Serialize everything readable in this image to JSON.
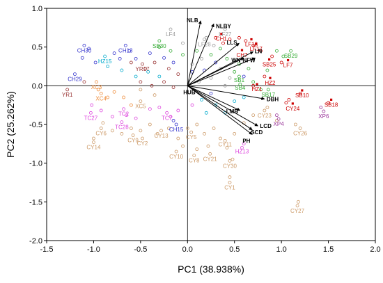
{
  "chart_data": {
    "type": "scatter",
    "xlabel": "PC1 (38.938%)",
    "ylabel": "PC2 (25.262%)",
    "xlim": [
      -1.5,
      2.0
    ],
    "ylim": [
      -2.0,
      1.0
    ],
    "xticks": [
      "-1.5",
      "-1.0",
      "-0.5",
      "0.0",
      "0.5",
      "1.0",
      "1.5",
      "2.0"
    ],
    "yticks": [
      "1.0",
      "0.5",
      "0.0",
      "-0.5",
      "-1.0",
      "-1.5",
      "-2.0"
    ],
    "reference_lines": {
      "x": 0,
      "y": 0
    },
    "vectors": [
      {
        "label": "NLB",
        "x": 0.14,
        "y": 0.84
      },
      {
        "label": "NLBY",
        "x": 0.28,
        "y": 0.8
      },
      {
        "label": "LLS",
        "x": 0.55,
        "y": 0.55
      },
      {
        "label": "LN",
        "x": 0.7,
        "y": 0.44
      },
      {
        "label": "WN",
        "x": 0.6,
        "y": 0.36
      },
      {
        "label": "NFW",
        "x": 0.72,
        "y": 0.36
      },
      {
        "label": "HUB",
        "x": 0.0,
        "y": 0.0
      },
      {
        "label": "DBH",
        "x": 0.82,
        "y": -0.17
      },
      {
        "label": "LMB",
        "x": 0.56,
        "y": -0.32
      },
      {
        "label": "LCD",
        "x": 0.75,
        "y": -0.52
      },
      {
        "label": "SCD",
        "x": 0.69,
        "y": -0.57
      },
      {
        "label": "PH",
        "x": 0.69,
        "y": -0.63
      }
    ],
    "labeled_points": [
      {
        "label": "CH30",
        "x": -1.1,
        "y": 0.52,
        "group": "CH"
      },
      {
        "label": "CH13",
        "x": -0.66,
        "y": 0.52,
        "group": "CH"
      },
      {
        "label": "CH29",
        "x": -1.2,
        "y": 0.15,
        "group": "CH"
      },
      {
        "label": "CH15",
        "x": -0.12,
        "y": -0.5,
        "group": "CH"
      },
      {
        "label": "HZ15",
        "x": -0.88,
        "y": 0.38,
        "group": "HZ"
      },
      {
        "label": "HZ2",
        "x": 0.88,
        "y": 0.1,
        "group": "HZ"
      },
      {
        "label": "HZ1",
        "x": 0.74,
        "y": 0.02,
        "group": "HZ"
      },
      {
        "label": "HZ13",
        "x": 0.58,
        "y": -0.8,
        "group": "HZ"
      },
      {
        "label": "SB30",
        "x": -0.3,
        "y": 0.58,
        "group": "SB"
      },
      {
        "label": "SB29",
        "x": 1.1,
        "y": 0.45,
        "group": "SB"
      },
      {
        "label": "SB17",
        "x": 0.86,
        "y": -0.05,
        "group": "SB"
      },
      {
        "label": "SB25",
        "x": 0.87,
        "y": 0.34,
        "group": "SB"
      },
      {
        "label": "SB10",
        "x": 1.22,
        "y": -0.06,
        "group": "SB"
      },
      {
        "label": "SB18",
        "x": 1.53,
        "y": -0.18,
        "group": "SB"
      },
      {
        "label": "LF4",
        "x": -0.18,
        "y": 0.73,
        "group": "LF"
      },
      {
        "label": "LF27",
        "x": 0.4,
        "y": 0.73,
        "group": "LF"
      },
      {
        "label": "LF28",
        "x": 0.18,
        "y": 0.6,
        "group": "LF"
      },
      {
        "label": "LF17",
        "x": 0.73,
        "y": 0.54,
        "group": "LF"
      },
      {
        "label": "LF7",
        "x": 1.07,
        "y": 0.33,
        "group": "LF"
      },
      {
        "label": "CH1",
        "x": 0.36,
        "y": 0.67,
        "group": "CH2"
      },
      {
        "label": "CH7",
        "x": 0.58,
        "y": 0.46,
        "group": "CH2"
      },
      {
        "label": "LF18",
        "x": 0.68,
        "y": 0.6,
        "group": "CH2"
      },
      {
        "label": "YR17",
        "x": -0.48,
        "y": 0.28,
        "group": "YR"
      },
      {
        "label": "YR1",
        "x": -1.28,
        "y": -0.05,
        "group": "YR"
      },
      {
        "label": "XC3",
        "x": -0.97,
        "y": 0.05,
        "group": "XC"
      },
      {
        "label": "XC4",
        "x": -0.92,
        "y": -0.1,
        "group": "XC"
      },
      {
        "label": "XC5",
        "x": -0.5,
        "y": -0.2,
        "group": "XC"
      },
      {
        "label": "XP4",
        "x": 0.97,
        "y": -0.43,
        "group": "XP"
      },
      {
        "label": "XP6",
        "x": 1.45,
        "y": -0.33,
        "group": "XP"
      },
      {
        "label": "TC27",
        "x": -1.03,
        "y": -0.35,
        "group": "TC"
      },
      {
        "label": "TC2",
        "x": -0.68,
        "y": -0.3,
        "group": "TC"
      },
      {
        "label": "TC28",
        "x": -0.7,
        "y": -0.47,
        "group": "TC"
      },
      {
        "label": "TC7",
        "x": -0.22,
        "y": -0.35,
        "group": "TC"
      },
      {
        "label": "CY24",
        "x": 1.12,
        "y": -0.23,
        "group": "CY"
      },
      {
        "label": "CY23",
        "x": 0.82,
        "y": -0.32,
        "group": "CY"
      },
      {
        "label": "CY26",
        "x": 1.2,
        "y": -0.55,
        "group": "CY"
      },
      {
        "label": "CY6",
        "x": -0.92,
        "y": -0.55,
        "group": "CY"
      },
      {
        "label": "CY14",
        "x": -1.0,
        "y": -0.73,
        "group": "CY"
      },
      {
        "label": "CY9",
        "x": -0.58,
        "y": -0.64,
        "group": "CY"
      },
      {
        "label": "CY2",
        "x": -0.48,
        "y": -0.68,
        "group": "CY"
      },
      {
        "label": "CY13",
        "x": -0.28,
        "y": -0.58,
        "group": "CY"
      },
      {
        "label": "CY5",
        "x": 0.04,
        "y": -0.6,
        "group": "CY"
      },
      {
        "label": "CY10",
        "x": -0.12,
        "y": -0.85,
        "group": "CY"
      },
      {
        "label": "CY8",
        "x": 0.07,
        "y": -0.9,
        "group": "CY"
      },
      {
        "label": "CY21",
        "x": 0.24,
        "y": -0.88,
        "group": "CY"
      },
      {
        "label": "CY11",
        "x": 0.4,
        "y": -0.71,
        "group": "CY"
      },
      {
        "label": "CY30",
        "x": 0.45,
        "y": -0.97,
        "group": "CY"
      },
      {
        "label": "CY1",
        "x": 0.45,
        "y": -1.25,
        "group": "CY"
      },
      {
        "label": "CY27",
        "x": 1.17,
        "y": -1.55,
        "group": "CY"
      },
      {
        "label": "SB4",
        "x": 0.56,
        "y": 0.02,
        "group": "SB"
      },
      {
        "label": "SB1",
        "x": 0.55,
        "y": 0.12,
        "group": "SB"
      }
    ],
    "colors": {
      "CH": "#3333cc",
      "HZ": "#cc0000",
      "HZ_cyan": "#00aacc",
      "SB": "#33aa33",
      "SB_red": "#cc0000",
      "LF": "#999999",
      "CH2": "#cc0000",
      "YR": "#993333",
      "XC": "#ee8833",
      "XP": "#993399",
      "TC": "#dd44dd",
      "CY": "#cc9966"
    },
    "label_colors": {
      "CH30": "#3333cc",
      "CH13": "#3333cc",
      "CH29": "#3333cc",
      "CH15": "#3333cc",
      "HZ15": "#00aacc",
      "HZ2": "#cc0000",
      "HZ1": "#cc0000",
      "HZ13": "#dd44dd",
      "SB30": "#33aa33",
      "SB29": "#33aa33",
      "SB17": "#33aa33",
      "SB25": "#cc0000",
      "SB10": "#cc0000",
      "SB18": "#cc0000",
      "SB4": "#33aa33",
      "SB1": "#33aa33",
      "LF4": "#999999",
      "LF27": "#999999",
      "LF28": "#999999",
      "LF17": "#cc0000",
      "LF7": "#cc0000",
      "CH1": "#cc0000",
      "CH7": "#cc0000",
      "LF18": "#cc0000",
      "YR17": "#993333",
      "YR1": "#993333",
      "XC3": "#ee8833",
      "XC4": "#ee8833",
      "XC5": "#cc9966",
      "XP4": "#993399",
      "XP6": "#993399",
      "TC27": "#dd44dd",
      "TC2": "#dd44dd",
      "TC28": "#dd44dd",
      "TC7": "#dd44dd",
      "CY24": "#cc0000"
    },
    "unlabeled_points": [
      [
        -1.12,
        0.36,
        "#3333cc"
      ],
      [
        -1.05,
        0.48,
        "#3333cc"
      ],
      [
        -0.98,
        0.3,
        "#3333cc"
      ],
      [
        -0.78,
        0.42,
        "#3333cc"
      ],
      [
        -0.72,
        0.35,
        "#3333cc"
      ],
      [
        -0.62,
        0.45,
        "#3333cc"
      ],
      [
        -0.55,
        0.35,
        "#3333cc"
      ],
      [
        -0.4,
        0.42,
        "#3333cc"
      ],
      [
        -0.25,
        0.36,
        "#3333cc"
      ],
      [
        -0.15,
        0.3,
        "#3333cc"
      ],
      [
        -0.85,
        0.25,
        "#00aacc"
      ],
      [
        -0.7,
        0.2,
        "#00aacc"
      ],
      [
        -0.55,
        0.12,
        "#00aacc"
      ],
      [
        -0.42,
        0.18,
        "#00aacc"
      ],
      [
        -0.3,
        0.12,
        "#00aacc"
      ],
      [
        -0.6,
        0.3,
        "#993333"
      ],
      [
        -0.45,
        0.22,
        "#993333"
      ],
      [
        -0.35,
        0.3,
        "#993333"
      ],
      [
        -0.2,
        0.22,
        "#993333"
      ],
      [
        -0.1,
        0.15,
        "#993333"
      ],
      [
        -0.5,
        0.05,
        "#993333"
      ],
      [
        -0.38,
        0.0,
        "#993333"
      ],
      [
        -0.25,
        0.05,
        "#993333"
      ],
      [
        -0.15,
        -0.02,
        "#993333"
      ],
      [
        -1.1,
        0.05,
        "#993333"
      ],
      [
        -0.3,
        0.5,
        "#33aa33"
      ],
      [
        -0.18,
        0.45,
        "#33aa33"
      ],
      [
        -0.05,
        0.4,
        "#33aa33"
      ],
      [
        0.1,
        0.45,
        "#33aa33"
      ],
      [
        0.25,
        0.4,
        "#33aa33"
      ],
      [
        0.35,
        0.48,
        "#33aa33"
      ],
      [
        0.42,
        0.35,
        "#33aa33"
      ],
      [
        0.55,
        0.28,
        "#33aa33"
      ],
      [
        0.65,
        0.22,
        "#33aa33"
      ],
      [
        0.5,
        0.18,
        "#33aa33"
      ],
      [
        0.95,
        0.45,
        "#33aa33"
      ],
      [
        1.02,
        0.38,
        "#33aa33"
      ],
      [
        0.85,
        0.2,
        "#33aa33"
      ],
      [
        0.7,
        0.05,
        "#33aa33"
      ],
      [
        0.78,
        -0.05,
        "#33aa33"
      ],
      [
        0.3,
        0.62,
        "#cc0000"
      ],
      [
        0.38,
        0.55,
        "#cc0000"
      ],
      [
        0.45,
        0.6,
        "#cc0000"
      ],
      [
        0.55,
        0.62,
        "#cc0000"
      ],
      [
        0.62,
        0.58,
        "#cc0000"
      ],
      [
        0.7,
        0.52,
        "#cc0000"
      ],
      [
        0.78,
        0.45,
        "#cc0000"
      ],
      [
        0.9,
        0.38,
        "#cc0000"
      ],
      [
        1.0,
        0.3,
        "#cc0000"
      ],
      [
        0.82,
        0.12,
        "#cc0000"
      ],
      [
        0.7,
        0.0,
        "#cc0000"
      ],
      [
        1.08,
        -0.18,
        "#cc0000"
      ],
      [
        1.2,
        -0.1,
        "#cc0000"
      ],
      [
        1.5,
        -0.22,
        "#cc0000"
      ],
      [
        1.05,
        -0.22,
        "#cc0000"
      ],
      [
        0.2,
        0.62,
        "#999999"
      ],
      [
        0.28,
        0.52,
        "#999999"
      ],
      [
        0.15,
        0.35,
        "#999999"
      ],
      [
        0.05,
        0.28,
        "#999999"
      ],
      [
        0.35,
        0.22,
        "#999999"
      ],
      [
        0.45,
        0.1,
        "#999999"
      ],
      [
        0.25,
        0.1,
        "#999999"
      ],
      [
        0.12,
        0.05,
        "#999999"
      ],
      [
        -0.05,
        0.55,
        "#999999"
      ],
      [
        0.4,
        0.0,
        "#999999"
      ],
      [
        -0.95,
        -0.05,
        "#ee8833"
      ],
      [
        -0.85,
        -0.15,
        "#ee8833"
      ],
      [
        -0.78,
        -0.08,
        "#ee8833"
      ],
      [
        -0.68,
        -0.15,
        "#ee8833"
      ],
      [
        -0.6,
        -0.25,
        "#ee8833"
      ],
      [
        -1.02,
        -0.25,
        "#dd44dd"
      ],
      [
        -0.92,
        -0.32,
        "#dd44dd"
      ],
      [
        -0.8,
        -0.4,
        "#dd44dd"
      ],
      [
        -0.65,
        -0.38,
        "#dd44dd"
      ],
      [
        -0.55,
        -0.42,
        "#dd44dd"
      ],
      [
        -0.4,
        -0.3,
        "#dd44dd"
      ],
      [
        -0.3,
        -0.28,
        "#dd44dd"
      ],
      [
        -0.18,
        -0.4,
        "#dd44dd"
      ],
      [
        -0.1,
        -0.32,
        "#dd44dd"
      ],
      [
        0.05,
        -0.25,
        "#dd44dd"
      ],
      [
        -0.9,
        -0.48,
        "#cc9966"
      ],
      [
        -0.8,
        -0.58,
        "#cc9966"
      ],
      [
        -0.7,
        -0.62,
        "#cc9966"
      ],
      [
        -0.6,
        -0.55,
        "#cc9966"
      ],
      [
        -0.5,
        -0.58,
        "#cc9966"
      ],
      [
        -0.4,
        -0.5,
        "#cc9966"
      ],
      [
        -0.32,
        -0.62,
        "#cc9966"
      ],
      [
        -0.2,
        -0.55,
        "#cc9966"
      ],
      [
        -0.1,
        -0.68,
        "#cc9966"
      ],
      [
        0.0,
        -0.55,
        "#cc9966"
      ],
      [
        0.1,
        -0.5,
        "#cc9966"
      ],
      [
        0.18,
        -0.62,
        "#cc9966"
      ],
      [
        0.28,
        -0.55,
        "#cc9966"
      ],
      [
        0.35,
        -0.68,
        "#cc9966"
      ],
      [
        0.22,
        -0.78,
        "#cc9966"
      ],
      [
        0.1,
        -0.82,
        "#cc9966"
      ],
      [
        -0.05,
        -0.78,
        "#cc9966"
      ],
      [
        0.42,
        -0.8,
        "#cc9966"
      ],
      [
        0.5,
        -0.62,
        "#cc9966"
      ],
      [
        0.6,
        -0.48,
        "#cc9966"
      ],
      [
        0.7,
        -0.38,
        "#cc9966"
      ],
      [
        0.85,
        -0.28,
        "#cc9966"
      ],
      [
        0.95,
        -0.45,
        "#cc9966"
      ],
      [
        1.15,
        -0.5,
        "#cc9966"
      ],
      [
        0.45,
        -1.18,
        "#cc9966"
      ],
      [
        0.48,
        -0.95,
        "#cc9966"
      ],
      [
        1.18,
        -1.5,
        "#cc9966"
      ],
      [
        -1.0,
        -0.68,
        "#cc9966"
      ],
      [
        -0.5,
        -0.05,
        "#cc9966"
      ],
      [
        -0.35,
        -0.12,
        "#cc9966"
      ],
      [
        0.95,
        -0.38,
        "#993399"
      ],
      [
        1.42,
        -0.28,
        "#993399"
      ],
      [
        0.6,
        -0.75,
        "#dd44dd"
      ],
      [
        -0.15,
        -0.45,
        "#3333cc"
      ],
      [
        0.2,
        -0.35,
        "#00aacc"
      ],
      [
        0.3,
        -0.25,
        "#00aacc"
      ],
      [
        0.4,
        -0.35,
        "#00aacc"
      ],
      [
        0.15,
        -0.18,
        "#00aacc"
      ],
      [
        0.5,
        -0.2,
        "#00aacc"
      ],
      [
        0.6,
        -0.15,
        "#00aacc"
      ],
      [
        0.05,
        0.18,
        "#3333cc"
      ],
      [
        0.18,
        0.2,
        "#3333cc"
      ],
      [
        0.3,
        0.3,
        "#3333cc"
      ],
      [
        0.6,
        0.12,
        "#3333cc"
      ],
      [
        0.25,
        -0.1,
        "#3333cc"
      ]
    ]
  }
}
